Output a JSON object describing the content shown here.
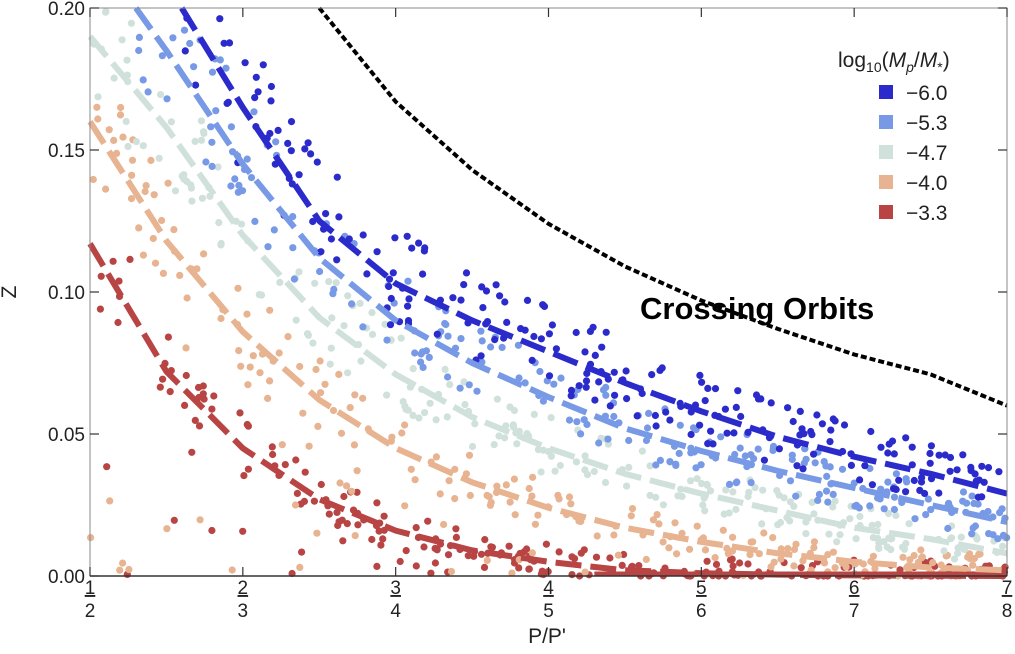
{
  "chart_data": {
    "type": "scatter",
    "xlabel": "P/P'",
    "ylabel": "Z",
    "xlim": [
      1,
      7
    ],
    "ylim": [
      0,
      0.2
    ],
    "top_axis_ticks": [
      "1",
      "2",
      "3",
      "4",
      "5",
      "6",
      "7"
    ],
    "bottom_axis_ticks": [
      "2",
      "3",
      "4",
      "5",
      "6",
      "7",
      "8"
    ],
    "y_ticks": [
      "0.00",
      "0.05",
      "0.10",
      "0.15",
      "0.20"
    ],
    "y_tick_values": [
      0,
      0.05,
      0.1,
      0.15,
      0.2
    ],
    "legend_title": "log10(Mp/M*)",
    "annotation": "Crossing Orbits",
    "crossing_curve": {
      "name": "crossing orbits boundary",
      "color": "#000000",
      "x": [
        2.5,
        3.0,
        3.5,
        4.0,
        4.5,
        5.0,
        5.5,
        6.0,
        6.5,
        7.0
      ],
      "y": [
        0.2,
        0.167,
        0.143,
        0.124,
        0.109,
        0.097,
        0.087,
        0.078,
        0.071,
        0.06
      ]
    },
    "series": [
      {
        "name": "−6.0",
        "color": "#2b2bcc",
        "x": [
          1.6,
          2.0,
          2.5,
          3.0,
          3.5,
          4.0,
          4.5,
          5.0,
          5.5,
          6.0,
          6.5,
          7.0
        ],
        "y": [
          0.2,
          0.165,
          0.125,
          0.103,
          0.09,
          0.079,
          0.068,
          0.058,
          0.049,
          0.042,
          0.036,
          0.029
        ]
      },
      {
        "name": "−5.3",
        "color": "#7799e6",
        "x": [
          1.3,
          1.5,
          2.0,
          2.5,
          3.0,
          3.5,
          4.0,
          4.5,
          5.0,
          5.5,
          6.0,
          6.5,
          7.0
        ],
        "y": [
          0.2,
          0.185,
          0.145,
          0.112,
          0.09,
          0.075,
          0.063,
          0.052,
          0.044,
          0.037,
          0.031,
          0.025,
          0.019
        ]
      },
      {
        "name": "−4.7",
        "color": "#cfe1da",
        "x": [
          1.0,
          1.5,
          2.0,
          2.5,
          3.0,
          3.5,
          4.0,
          4.5,
          5.0,
          5.5,
          6.0,
          6.5,
          7.0
        ],
        "y": [
          0.19,
          0.158,
          0.12,
          0.091,
          0.071,
          0.056,
          0.045,
          0.036,
          0.029,
          0.023,
          0.017,
          0.013,
          0.008
        ]
      },
      {
        "name": "−4.0",
        "color": "#e7b390",
        "x": [
          1.0,
          1.5,
          2.0,
          2.5,
          3.0,
          3.5,
          4.0,
          4.5,
          5.0,
          5.5,
          6.0,
          6.5,
          7.0
        ],
        "y": [
          0.16,
          0.118,
          0.086,
          0.062,
          0.045,
          0.033,
          0.024,
          0.017,
          0.012,
          0.008,
          0.005,
          0.003,
          0.002
        ]
      },
      {
        "name": "−3.3",
        "color": "#b84444",
        "x": [
          1.0,
          1.5,
          2.0,
          2.5,
          3.0,
          3.5,
          4.0,
          4.5,
          5.0,
          5.5,
          6.0,
          6.5,
          7.0
        ],
        "y": [
          0.117,
          0.072,
          0.045,
          0.027,
          0.016,
          0.009,
          0.005,
          0.002,
          0.001,
          0.0005,
          0.0002,
          0.0001,
          0.0
        ]
      }
    ]
  }
}
